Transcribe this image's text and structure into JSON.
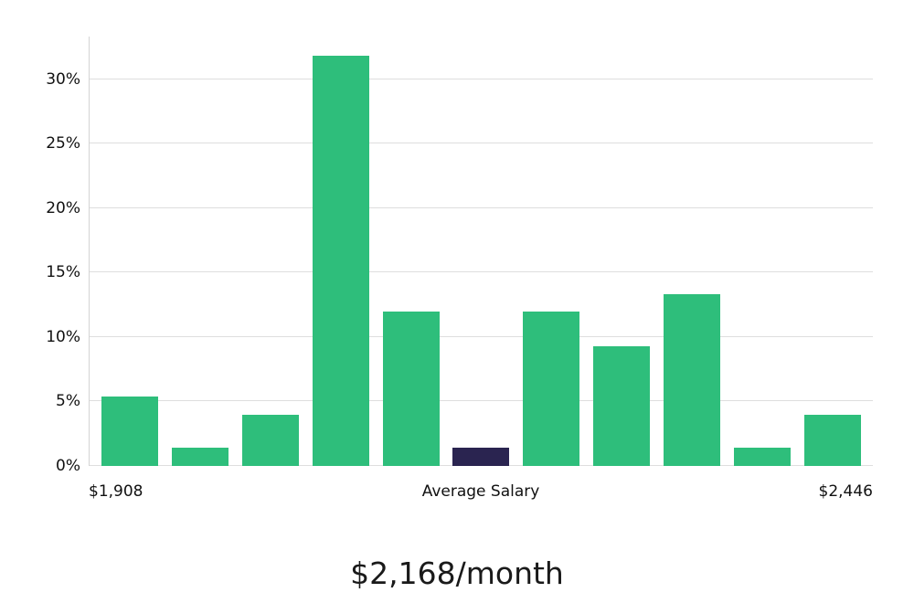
{
  "chart_data": {
    "type": "bar",
    "title": "$2,168/month",
    "values": [
      5.4,
      1.4,
      4.0,
      31.8,
      12.0,
      1.4,
      12.0,
      9.3,
      13.3,
      1.4,
      4.0
    ],
    "highlight_index": 5,
    "bar_color": "#2ebe7b",
    "highlight_color": "#2a2450",
    "ylim": [
      0,
      33.3
    ],
    "yticks": [
      0,
      5,
      10,
      15,
      20,
      25,
      30
    ],
    "ytick_suffix": "%",
    "grid": "on",
    "legend": "none",
    "x_axis_labels": {
      "left": "$1,908",
      "center": "Average Salary",
      "right": "$2,446"
    }
  }
}
